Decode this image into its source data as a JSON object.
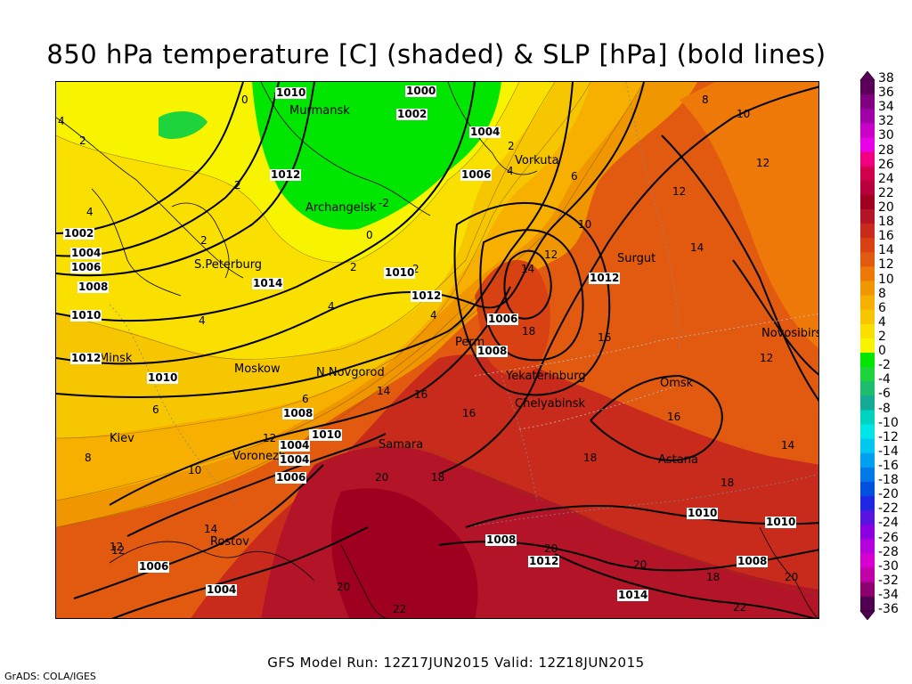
{
  "title": "850 hPa temperature [C] (shaded) & SLP [hPa] (bold lines)",
  "footer_run": "GFS Model Run: 12Z17JUN2015 Valid: 12Z18JUN2015",
  "credit": "GrADS: COLA/IGES",
  "colorbar": {
    "labels": [
      "38",
      "36",
      "34",
      "32",
      "30",
      "28",
      "26",
      "24",
      "22",
      "20",
      "18",
      "16",
      "14",
      "12",
      "10",
      "8",
      "6",
      "4",
      "2",
      "0",
      "-2",
      "-4",
      "-6",
      "-8",
      "-10",
      "-12",
      "-14",
      "-16",
      "-18",
      "-20",
      "-22",
      "-24",
      "-26",
      "-28",
      "-30",
      "-32",
      "-34",
      "-36"
    ],
    "colors": [
      "#5a005a",
      "#80007f",
      "#a000a8",
      "#c800c8",
      "#e800e8",
      "#f00080",
      "#d0004d",
      "#b8003c",
      "#a00020",
      "#b41428",
      "#c82a1c",
      "#d84212",
      "#e25a10",
      "#ee7808",
      "#f09600",
      "#f8b000",
      "#f6c600",
      "#fae000",
      "#f8f400",
      "#00e600",
      "#1ed43c",
      "#1cbe6e",
      "#14aa96",
      "#00d2c0",
      "#00e6e6",
      "#00c8f0",
      "#00a0f0",
      "#0078e8",
      "#0050e0",
      "#1e28e0",
      "#5a14e0",
      "#8c00e0",
      "#b400dc",
      "#d800d0",
      "#c000a8",
      "#8c0070",
      "#500050"
    ]
  },
  "cities": [
    {
      "name": "Murmansk"
    },
    {
      "name": "Vorkuta"
    },
    {
      "name": "Archangelsk"
    },
    {
      "name": "S.Peterburg"
    },
    {
      "name": "Surgut"
    },
    {
      "name": "Minsk"
    },
    {
      "name": "Moskow"
    },
    {
      "name": "N.Novgorod"
    },
    {
      "name": "Perm"
    },
    {
      "name": "Yekaterinburg"
    },
    {
      "name": "Omsk"
    },
    {
      "name": "Novosibirsk"
    },
    {
      "name": "Chelyabinsk"
    },
    {
      "name": "Kiev"
    },
    {
      "name": "Voronezh"
    },
    {
      "name": "Samara"
    },
    {
      "name": "Astana"
    },
    {
      "name": "Rostov"
    }
  ],
  "pressure_labels": [
    "1010",
    "1000",
    "1002",
    "1004",
    "1012",
    "1006",
    "1002",
    "1004",
    "1006",
    "1008",
    "1010",
    "1014",
    "1010",
    "1012",
    "1006",
    "1008",
    "1012",
    "1012",
    "1010",
    "1008",
    "1008",
    "1004",
    "1004",
    "1006",
    "1010",
    "1008",
    "1012",
    "1010",
    "1008",
    "1006",
    "1004",
    "1014",
    "1010"
  ],
  "temp_labels": [
    "-2",
    "0",
    "2",
    "4",
    "2",
    "2",
    "4",
    "-2",
    "0",
    "2",
    "4",
    "6",
    "10",
    "12",
    "14",
    "16",
    "18",
    "14",
    "16",
    "16",
    "18",
    "20",
    "20",
    "22",
    "18",
    "12",
    "12",
    "12",
    "14",
    "12",
    "10",
    "8",
    "6",
    "4",
    "2",
    "4",
    "2",
    "4",
    "6",
    "8",
    "10",
    "12",
    "14",
    "18",
    "20",
    "20",
    "18",
    "14",
    "12",
    "16",
    "20",
    "22"
  ]
}
